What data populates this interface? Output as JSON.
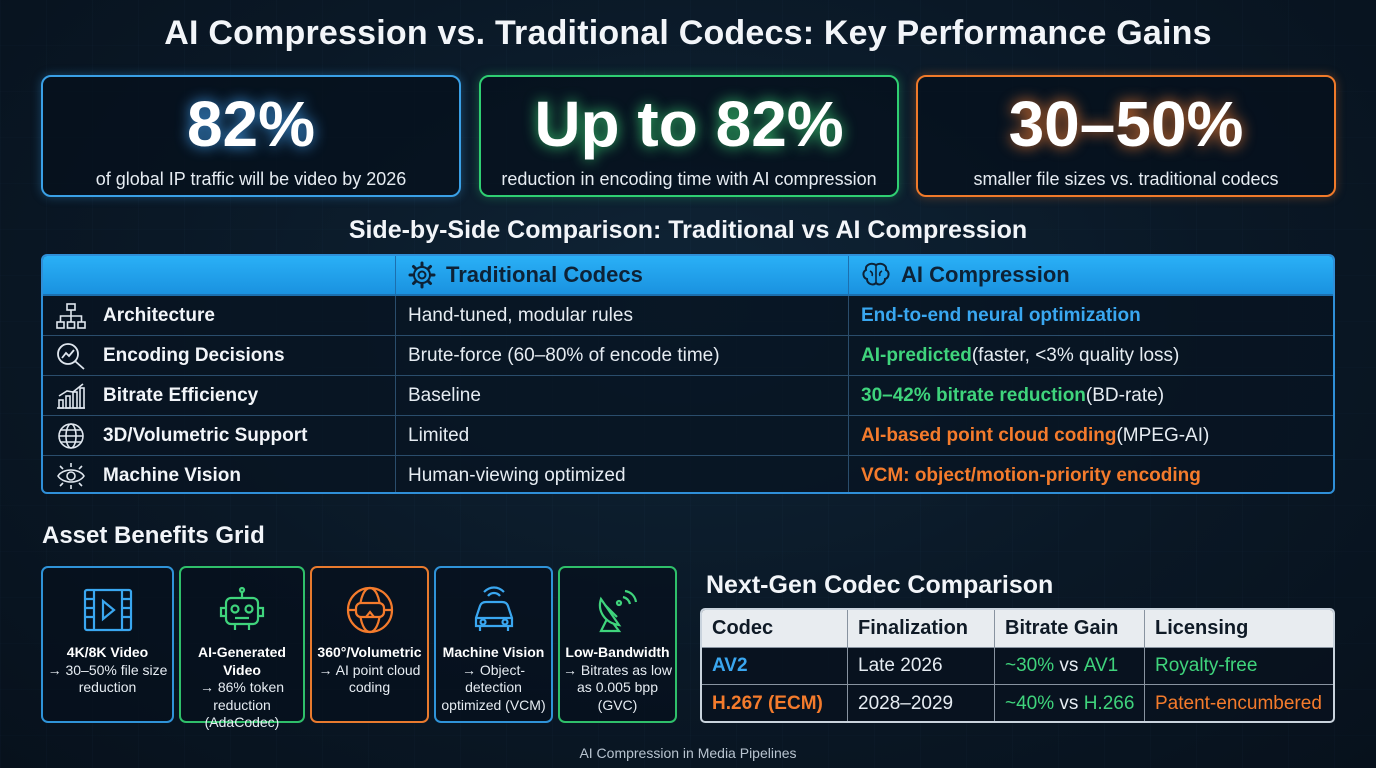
{
  "title": "AI Compression vs. Traditional Codecs: Key Performance Gains",
  "stats": [
    {
      "value": "82%",
      "caption": "of global IP traffic will be video by 2026",
      "color": "#3aa0e6"
    },
    {
      "value": "Up to 82%",
      "caption": "reduction in encoding time with AI compression",
      "color": "#2fcf72"
    },
    {
      "value": "30–50%",
      "caption": "smaller file sizes vs. traditional codecs",
      "color": "#f07a2a"
    }
  ],
  "comparison": {
    "title": "Side-by-Side Comparison: Traditional vs AI Compression",
    "headers": {
      "traditional": "Traditional Codecs",
      "ai": "AI Compression"
    },
    "rows": [
      {
        "label": "Architecture",
        "icon": "hierarchy-icon",
        "traditional": "Hand-tuned, modular rules",
        "ai_highlight": "End-to-end neural optimization",
        "ai_rest": "",
        "ai_color": "blue"
      },
      {
        "label": "Encoding Decisions",
        "icon": "analytics-search-icon",
        "traditional": "Brute-force (60–80% of encode time)",
        "ai_highlight": "AI-predicted",
        "ai_rest": " (faster, <3% quality loss)",
        "ai_color": "green"
      },
      {
        "label": "Bitrate Efficiency",
        "icon": "bar-chart-icon",
        "traditional": "Baseline",
        "ai_highlight": "30–42% bitrate reduction",
        "ai_rest": " (BD-rate)",
        "ai_color": "green"
      },
      {
        "label": "3D/Volumetric Support",
        "icon": "globe-icon",
        "traditional": "Limited",
        "ai_highlight": "AI-based point cloud coding",
        "ai_rest": " (MPEG-AI)",
        "ai_color": "orange"
      },
      {
        "label": "Machine Vision",
        "icon": "eye-circuit-icon",
        "traditional": "Human-viewing optimized",
        "ai_highlight": "VCM: object/motion-priority encoding",
        "ai_rest": "",
        "ai_color": "orange"
      }
    ]
  },
  "assets": {
    "title": "Asset Benefits Grid",
    "cards": [
      {
        "icon": "film-play-icon",
        "title": "4K/8K Video",
        "text": "→ 30–50% file size reduction",
        "color": "#2f93d8"
      },
      {
        "icon": "robot-icon",
        "title": "AI-Generated Video",
        "text": "→ 86% token reduction (AdaCodec)",
        "color": "#2fbf6a"
      },
      {
        "icon": "vr-globe-icon",
        "title": "360°/Volumetric",
        "text": "→ AI point cloud coding",
        "color": "#e87a2e"
      },
      {
        "icon": "car-sensor-icon",
        "title": "Machine Vision",
        "text": "→ Object-detection optimized (VCM)",
        "color": "#2f93d8"
      },
      {
        "icon": "satellite-dish-icon",
        "title": "Low-Bandwidth",
        "text": "→ Bitrates as low as 0.005 bpp (GVC)",
        "color": "#2fbf6a"
      }
    ]
  },
  "nextgen": {
    "title": "Next-Gen Codec Comparison",
    "headers": [
      "Codec",
      "Finalization",
      "Bitrate Gain",
      "Licensing"
    ],
    "rows": [
      {
        "codec": "AV2",
        "final": "Late 2026",
        "gain_a": "~30%",
        "gain_mid": " vs ",
        "gain_b": "AV1",
        "licensing": "Royalty-free",
        "codec_color": "#3aa7f0",
        "gain_color": "#3fd47c",
        "lic_color": "#3fd47c"
      },
      {
        "codec": "H.267 (ECM)",
        "final": "2028–2029",
        "gain_a": "~40%",
        "gain_mid": " vs ",
        "gain_b": "H.266",
        "licensing": "Patent-encumbered",
        "codec_color": "#f47b2c",
        "gain_color": "#3fd47c",
        "lic_color": "#f47b2c"
      }
    ]
  },
  "footer": "AI Compression in Media Pipelines"
}
